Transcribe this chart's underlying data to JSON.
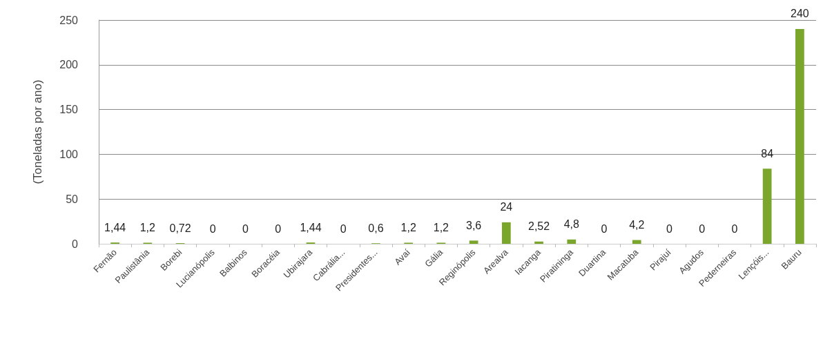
{
  "chart_data": {
    "type": "bar",
    "ylabel": "(Toneladas por ano)",
    "categories": [
      "Fernão",
      "Paulistânia",
      "Borebi",
      "Lucianópolis",
      "Balbinos",
      "Boracéia",
      "Ubirajara",
      "Cabrália...",
      "Presidentes...",
      "Avaí",
      "Gália",
      "Reginópolis",
      "Arealva",
      "Iacanga",
      "Piratininga",
      "Duartina",
      "Macatuba",
      "Pirajuí",
      "Agudos",
      "Pederneiras",
      "Lençóis...",
      "Bauru"
    ],
    "values": [
      1.44,
      1.2,
      0.72,
      0,
      0,
      0,
      1.44,
      0,
      0.6,
      1.2,
      1.2,
      3.6,
      24,
      2.52,
      4.8,
      0,
      4.2,
      0,
      0,
      0,
      84,
      240
    ],
    "value_labels": [
      "1,44",
      "1,2",
      "0,72",
      "0",
      "0",
      "0",
      "1,44",
      "0",
      "0,6",
      "1,2",
      "1,2",
      "3,6",
      "24",
      "2,52",
      "4,8",
      "0",
      "4,2",
      "0",
      "0",
      "0",
      "84",
      "240"
    ],
    "color": "#7aa62c",
    "ylim": [
      0,
      250
    ],
    "yticks": [
      0,
      50,
      100,
      150,
      200,
      250
    ],
    "grid": "y"
  }
}
